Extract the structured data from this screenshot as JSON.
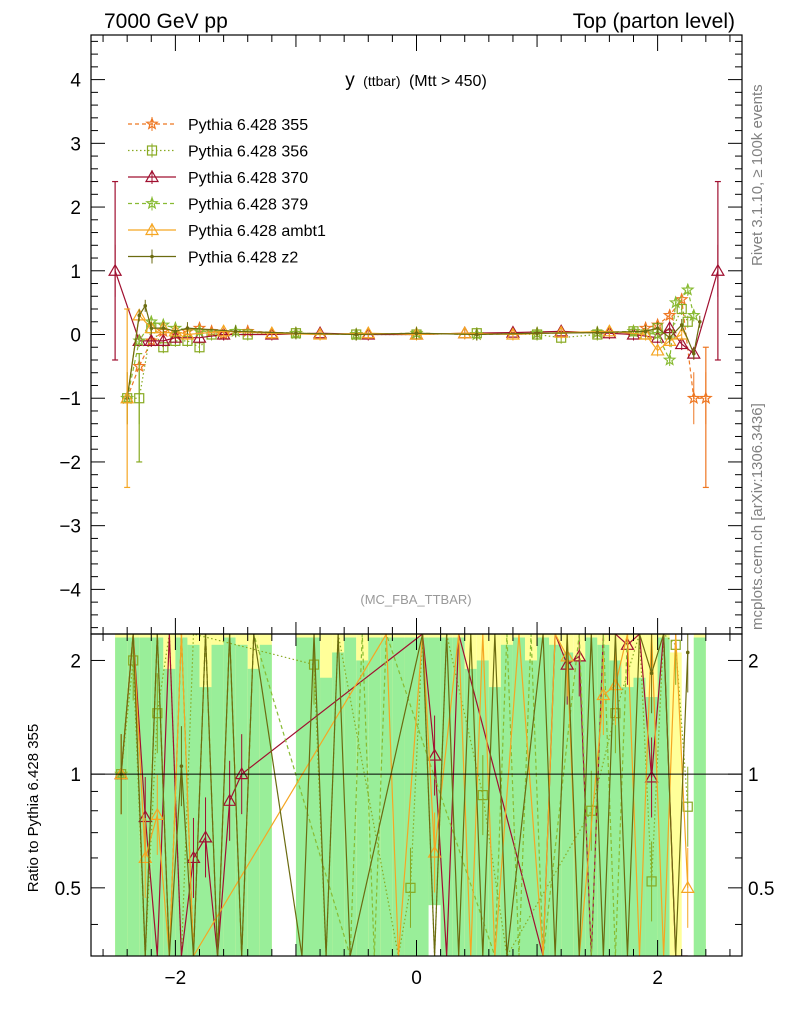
{
  "header": {
    "left": "7000 GeV pp",
    "right": "Top (parton level)"
  },
  "side_text": {
    "version": "Rivet 3.1.10, ≥ 100k events",
    "source": "mcplots.cern.ch [arXiv:1306.3436]"
  },
  "chart_data": [
    {
      "type": "line",
      "panel": "main",
      "title": "y (ttbar) (Mtt > 450)",
      "title_main": "y",
      "title_sub": "(ttbar)",
      "title_cond": "(Mtt > 450)",
      "watermark": "(MC_FBA_TTBAR)",
      "xlim": [
        -2.7,
        2.7
      ],
      "ylim": [
        -4.7,
        4.7
      ],
      "yticks": [
        -4,
        -3,
        -2,
        -1,
        0,
        1,
        2,
        3,
        4
      ],
      "ytick_labels": [
        "−4",
        "−3",
        "−2",
        "−1",
        "0",
        "1",
        "2",
        "3",
        "4"
      ],
      "legend_position": "top-left",
      "legend": [
        {
          "label": "Pythia 6.428 355",
          "color": "#ee7722",
          "marker": "star",
          "dash": "4,3"
        },
        {
          "label": "Pythia 6.428 356",
          "color": "#88aa22",
          "marker": "square",
          "dash": "1.5,2.5"
        },
        {
          "label": "Pythia 6.428 370",
          "color": "#a01030",
          "marker": "triangle",
          "dash": ""
        },
        {
          "label": "Pythia 6.428 379",
          "color": "#88bb33",
          "marker": "star",
          "dash": "4,3"
        },
        {
          "label": "Pythia 6.428 ambt1",
          "color": "#f5a623",
          "marker": "triangle",
          "dash": ""
        },
        {
          "label": "Pythia 6.428 z2",
          "color": "#6b6b10",
          "marker": "dot",
          "dash": ""
        }
      ],
      "series": [
        {
          "x": [
            -2.4,
            -2.3,
            -2.2,
            -2.1,
            -2.0,
            -1.9,
            -1.8,
            -1.7,
            -1.6,
            -1.4,
            -1.0,
            -0.5,
            0.0,
            0.5,
            1.0,
            1.5,
            1.8,
            1.9,
            2.0,
            2.1,
            2.2,
            2.3,
            2.4
          ],
          "y": [
            -1.0,
            -0.5,
            -0.1,
            0.05,
            0.0,
            0.05,
            0.1,
            0.05,
            0.0,
            0.05,
            0.02,
            0.0,
            0.02,
            0.0,
            0.02,
            0.03,
            0.05,
            0.1,
            0.15,
            0.3,
            0.55,
            -1.0,
            -1.0
          ]
        },
        {
          "x": [
            -2.4,
            -2.3,
            -2.2,
            -2.1,
            -2.0,
            -1.9,
            -1.8,
            -1.7,
            -1.4,
            -1.0,
            -0.5,
            0.0,
            0.5,
            1.0,
            1.2,
            1.5,
            1.8,
            1.9,
            2.0,
            2.1,
            2.2,
            2.25
          ],
          "y": [
            -1.0,
            -1.0,
            0.1,
            -0.2,
            -0.1,
            -0.1,
            -0.2,
            0.0,
            0.0,
            0.02,
            0.0,
            0.0,
            0.02,
            0.0,
            -0.05,
            0.0,
            0.05,
            0.0,
            0.1,
            0.0,
            0.4,
            0.2
          ]
        },
        {
          "x": [
            -2.5,
            -2.3,
            -2.2,
            -2.1,
            -2.0,
            -1.8,
            -1.6,
            -1.2,
            -0.8,
            -0.4,
            0.0,
            0.4,
            0.8,
            1.2,
            1.6,
            1.8,
            2.0,
            2.1,
            2.2,
            2.3,
            2.5
          ],
          "y": [
            1.0,
            -0.1,
            -0.1,
            -0.1,
            -0.05,
            -0.05,
            0.0,
            0.0,
            0.02,
            0.0,
            0.0,
            0.02,
            0.03,
            0.05,
            0.02,
            0.0,
            -0.05,
            0.1,
            -0.15,
            -0.3,
            1.0
          ]
        },
        {
          "x": [
            -2.4,
            -2.3,
            -2.2,
            -2.1,
            -2.0,
            -1.8,
            -1.5,
            -1.0,
            -0.5,
            0.0,
            0.5,
            1.0,
            1.5,
            1.8,
            2.0,
            2.1,
            2.15,
            2.25,
            2.3
          ],
          "y": [
            -1.0,
            -0.1,
            0.2,
            0.15,
            0.1,
            0.05,
            0.05,
            0.02,
            0.0,
            0.02,
            0.0,
            0.02,
            0.03,
            0.05,
            0.0,
            -0.4,
            0.5,
            0.7,
            0.3
          ]
        },
        {
          "x": [
            -2.4,
            -2.3,
            -2.2,
            -2.1,
            -2.0,
            -1.9,
            -1.6,
            -1.2,
            -0.8,
            -0.4,
            0.0,
            0.4,
            0.8,
            1.2,
            1.6,
            1.9,
            2.0,
            2.1,
            2.2
          ],
          "y": [
            -1.0,
            0.3,
            0.1,
            0.1,
            0.05,
            0.0,
            0.05,
            0.02,
            0.0,
            0.02,
            0.0,
            0.02,
            0.0,
            0.03,
            0.05,
            0.0,
            -0.25,
            -0.1,
            0.0
          ]
        },
        {
          "x": [
            -2.4,
            -2.3,
            -2.25,
            -2.2,
            -2.1,
            -2.0,
            -1.9,
            -1.5,
            -1.0,
            -0.5,
            0.0,
            0.5,
            1.0,
            1.5,
            1.9,
            2.0,
            2.1,
            2.2,
            2.3,
            2.35
          ],
          "y": [
            -1.0,
            0.3,
            0.45,
            0.1,
            0.1,
            0.05,
            0.1,
            0.05,
            0.02,
            0.0,
            0.02,
            0.0,
            0.02,
            0.03,
            0.05,
            0.1,
            -0.05,
            0.15,
            -0.3,
            0.2
          ]
        }
      ]
    },
    {
      "type": "line",
      "panel": "ratio",
      "ylabel": "Ratio to Pythia 6.428 355",
      "xlim": [
        -2.7,
        2.7
      ],
      "ylim": [
        0.33,
        2.35
      ],
      "yticks": [
        0.5,
        1,
        2
      ],
      "ytick_labels": [
        "0.5",
        "1",
        "2"
      ],
      "xticks": [
        -2,
        0,
        2
      ],
      "xtick_labels": [
        "−2",
        "0",
        "2"
      ],
      "reference": 1,
      "band_edges": [
        -2.5,
        -2.4,
        -2.3,
        -2.2,
        -2.1,
        -2.0,
        -1.9,
        -1.8,
        -1.7,
        -1.6,
        -1.5,
        -1.4,
        -1.3,
        -1.2,
        -1.1,
        -1.0,
        -0.9,
        -0.8,
        -0.7,
        -0.6,
        -0.5,
        -0.4,
        -0.3,
        -0.2,
        -0.1,
        0.0,
        0.1,
        0.2,
        0.3,
        0.4,
        0.5,
        0.6,
        0.7,
        0.8,
        0.9,
        1.0,
        1.1,
        1.2,
        1.3,
        1.4,
        1.5,
        1.6,
        1.7,
        1.8,
        1.9,
        2.0,
        2.1,
        2.2,
        2.3,
        2.4,
        2.5
      ],
      "band_green_hi": [
        2.35,
        2.35,
        2.35,
        2.35,
        2.35,
        2.35,
        2.35,
        2.35,
        2.35,
        2.35,
        2.35,
        2.35,
        2.35,
        0.33,
        0.33,
        2.35,
        2.35,
        2.35,
        2.35,
        2.35,
        2.35,
        2.35,
        2.35,
        2.35,
        2.35,
        2.35,
        2.35,
        2.35,
        2.35,
        2.35,
        2.35,
        2.35,
        2.35,
        2.35,
        2.35,
        2.35,
        2.35,
        2.35,
        2.35,
        2.35,
        2.35,
        2.35,
        2.35,
        2.35,
        2.35,
        2.35,
        0.33,
        0.33,
        2.35,
        0.33
      ],
      "band_yellow_hi": [
        2.35,
        2.35,
        2.35,
        2.35,
        2.35,
        2.35,
        2.35,
        2.35,
        2.35,
        2.35,
        2.35,
        2.35,
        2.35,
        0.33,
        0.33,
        2.35,
        2.35,
        2.35,
        2.35,
        2.35,
        2.35,
        2.35,
        2.35,
        2.35,
        2.35,
        2.35,
        2.35,
        2.35,
        2.35,
        2.35,
        2.35,
        2.35,
        2.35,
        2.35,
        2.35,
        2.35,
        2.35,
        2.35,
        2.35,
        2.35,
        2.35,
        2.35,
        2.35,
        2.35,
        2.35,
        2.35,
        2.35,
        0.33,
        2.35,
        0.33
      ],
      "band_green_top": [
        2.3,
        2.3,
        2.3,
        2.3,
        1.9,
        2.3,
        2.2,
        1.7,
        2.2,
        2.3,
        2.2,
        1.9,
        2.2,
        0.33,
        0.33,
        2.3,
        2.3,
        1.8,
        2.1,
        2.3,
        2.0,
        2.3,
        2.3,
        2.3,
        2.3,
        2.3,
        2.3,
        2.3,
        2.3,
        1.9,
        2.0,
        1.7,
        2.2,
        2.3,
        2.0,
        2.3,
        2.2,
        2.1,
        2.0,
        2.3,
        2.2,
        2.0,
        1.7,
        1.8,
        1.6,
        2.3,
        0.33,
        0.33,
        2.3,
        0.33
      ],
      "band_yellow_top": [
        2.35,
        2.35,
        2.35,
        2.35,
        2.35,
        2.35,
        2.35,
        2.35,
        2.35,
        2.35,
        2.35,
        2.35,
        2.35,
        0.33,
        0.33,
        2.35,
        2.35,
        2.35,
        2.35,
        2.35,
        2.35,
        2.35,
        2.35,
        2.35,
        2.35,
        2.35,
        2.35,
        2.35,
        2.35,
        2.35,
        2.35,
        2.35,
        2.35,
        2.35,
        2.35,
        2.35,
        2.35,
        2.35,
        2.35,
        2.35,
        2.35,
        2.35,
        2.35,
        2.35,
        2.35,
        2.35,
        2.1,
        0.33,
        2.35,
        0.33
      ],
      "band_green_bottom": [
        0.33,
        0.33,
        0.33,
        0.33,
        0.33,
        0.33,
        0.33,
        0.33,
        0.33,
        0.33,
        0.33,
        0.33,
        0.33,
        0.33,
        0.33,
        0.33,
        0.33,
        0.33,
        0.33,
        0.33,
        0.33,
        0.33,
        0.33,
        0.33,
        0.33,
        0.33,
        0.45,
        0.33,
        0.33,
        0.33,
        0.33,
        0.33,
        0.33,
        0.33,
        0.33,
        0.33,
        0.33,
        0.33,
        0.33,
        0.33,
        0.33,
        0.33,
        0.33,
        0.33,
        0.33,
        0.33,
        0.33,
        0.33,
        0.33,
        0.33
      ],
      "ratio_series": [
        {
          "x": [
            -2.45,
            -2.35,
            -2.25,
            -2.15,
            -2.05,
            -1.95,
            -1.85,
            -1.75,
            -1.65,
            -1.55,
            -1.45,
            -1.35
          ],
          "y": [
            1.0,
            2.35,
            0.33,
            2.35,
            0.33,
            2.35,
            0.33,
            2.35,
            0.33,
            2.35,
            0.33,
            2.35
          ]
        },
        {
          "x": [
            -2.45,
            -2.35,
            -2.25,
            -2.15,
            -2.05,
            -1.95,
            -1.85,
            -0.85,
            -0.75,
            -0.65,
            -0.15,
            -0.05,
            0.05,
            0.15,
            0.25,
            0.55,
            0.75,
            1.45,
            1.65,
            1.85,
            1.95,
            2.05,
            2.15,
            2.25
          ],
          "y": [
            1.0,
            2.0,
            0.33,
            1.45,
            2.35,
            0.33,
            2.35,
            1.95,
            0.33,
            2.35,
            0.33,
            0.5,
            2.35,
            0.33,
            2.35,
            0.88,
            0.33,
            0.8,
            1.45,
            2.35,
            0.52,
            2.35,
            2.2,
            0.82
          ]
        },
        {
          "x": [
            -2.45,
            -2.35,
            -2.25,
            -2.15,
            -2.05,
            -1.95,
            -1.85,
            -1.75,
            -1.65,
            -1.55,
            -1.45,
            0.05,
            0.15,
            0.25,
            0.35,
            1.05,
            1.15,
            1.25,
            1.35,
            1.45,
            1.55,
            1.65,
            1.75,
            1.85,
            1.95,
            2.05,
            2.15,
            2.25
          ],
          "y": [
            1.0,
            2.35,
            0.77,
            0.33,
            2.35,
            0.33,
            0.6,
            0.68,
            0.33,
            0.85,
            1.0,
            2.35,
            1.12,
            0.33,
            2.35,
            0.33,
            2.35,
            1.95,
            2.05,
            0.33,
            2.35,
            2.35,
            2.2,
            2.35,
            0.98,
            2.35,
            0.33,
            0.33
          ]
        },
        {
          "x": [
            -2.45,
            -2.35,
            -2.25,
            -2.15,
            -2.05,
            -1.95,
            -1.85,
            -1.75,
            -1.65,
            -1.55,
            -1.45,
            -1.35,
            -0.55,
            -0.45,
            -0.35,
            -0.25,
            0.65,
            0.75,
            0.85,
            0.95,
            1.05,
            1.35,
            1.45,
            1.55,
            1.65,
            1.75
          ],
          "y": [
            1.0,
            2.35,
            0.33,
            2.35,
            0.33,
            2.35,
            0.33,
            2.35,
            0.33,
            2.35,
            0.33,
            2.35,
            0.33,
            2.35,
            0.33,
            2.35,
            0.33,
            2.35,
            0.33,
            2.35,
            0.33,
            2.35,
            0.33,
            2.35,
            0.33,
            2.35
          ]
        },
        {
          "x": [
            -2.45,
            -2.35,
            -2.25,
            -2.15,
            -2.05,
            -1.95,
            -1.85,
            -0.25,
            -0.15,
            0.05,
            0.15,
            0.35,
            0.45,
            0.55,
            0.65,
            0.85,
            1.05,
            1.15,
            1.25,
            1.35,
            1.55,
            1.65,
            1.75,
            1.85,
            1.95,
            2.05,
            2.15,
            2.25
          ],
          "y": [
            1.0,
            2.35,
            0.6,
            0.78,
            0.33,
            2.35,
            0.33,
            2.35,
            0.33,
            2.35,
            0.62,
            2.35,
            0.33,
            2.35,
            0.33,
            2.35,
            0.33,
            2.35,
            2.05,
            0.33,
            1.62,
            1.72,
            2.35,
            0.33,
            2.35,
            0.33,
            2.35,
            0.5
          ]
        },
        {
          "x": [
            -2.45,
            -2.35,
            -2.25,
            -2.15,
            -2.05,
            -1.95,
            -1.85,
            -1.75,
            -1.65,
            -1.55,
            -1.45,
            -1.35,
            -0.95,
            -0.85,
            -0.75,
            -0.65,
            -0.55,
            0.05,
            0.15,
            0.25,
            0.35,
            0.45,
            0.55,
            0.65,
            0.75,
            1.05,
            1.15,
            1.25,
            1.35,
            1.45,
            1.55,
            1.65,
            1.75,
            1.85,
            1.95,
            2.05,
            2.15,
            2.25
          ],
          "y": [
            1.0,
            2.35,
            0.33,
            2.35,
            0.33,
            1.05,
            0.33,
            2.35,
            0.33,
            2.35,
            0.33,
            2.35,
            0.33,
            2.35,
            0.33,
            2.35,
            0.33,
            2.35,
            0.33,
            2.35,
            0.33,
            2.35,
            0.33,
            2.35,
            0.33,
            2.35,
            0.33,
            2.35,
            0.33,
            2.35,
            0.33,
            2.35,
            0.33,
            2.35,
            1.85,
            2.35,
            0.33,
            2.1
          ]
        }
      ]
    }
  ]
}
